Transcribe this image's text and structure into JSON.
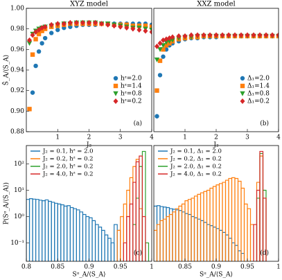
{
  "chart_data": [
    {
      "type": "scatter",
      "title": "XYZ model",
      "x_label": "J₂",
      "y_label": "S̄_A/⟨S_A⟩",
      "panel_label": "(a)",
      "legend": "lower right",
      "x": [
        0.1,
        0.2,
        0.3,
        0.4,
        0.5,
        0.6,
        0.8,
        1.0,
        1.2,
        1.4,
        1.6,
        1.8,
        2.0,
        2.2,
        2.4,
        2.6,
        2.8,
        3.0,
        3.2,
        3.4,
        3.6,
        3.8,
        4.0
      ],
      "xlim": [
        0,
        4
      ],
      "xticks": [
        1,
        2,
        3,
        4
      ],
      "ylim": [
        0.88,
        1.0
      ],
      "yticks": [
        0.88,
        {
          "value": 0.9,
          "label": "0.90"
        },
        0.92,
        0.94,
        0.96,
        0.98,
        {
          "value": 1.0,
          "label": "1.00"
        }
      ],
      "series": [
        {
          "name": "hᶻ=2.0",
          "color": "#1f77b4",
          "marker": "circle",
          "values": [
            null,
            0.918,
            0.944,
            0.958,
            0.966,
            0.971,
            0.976,
            0.979,
            0.981,
            0.982,
            0.983,
            0.984,
            0.984,
            0.984,
            0.985,
            0.985,
            0.985,
            0.985,
            0.985,
            0.985,
            0.985,
            0.985,
            0.984
          ]
        },
        {
          "name": "hᶻ=1.4",
          "color": "#ff7f0e",
          "marker": "square",
          "values": [
            0.902,
            0.955,
            0.97,
            0.975,
            0.978,
            0.98,
            0.982,
            0.983,
            0.984,
            0.985,
            0.985,
            0.985,
            0.985,
            0.985,
            0.985,
            0.985,
            0.984,
            0.984,
            0.984,
            0.983,
            0.983,
            0.983,
            0.982
          ]
        },
        {
          "name": "hᶻ=0.8",
          "color": "#2ca02c",
          "marker": "triangle",
          "values": [
            0.966,
            0.975,
            0.978,
            0.98,
            0.981,
            0.982,
            0.983,
            0.984,
            0.985,
            0.985,
            0.986,
            0.986,
            0.986,
            0.986,
            0.985,
            0.985,
            0.984,
            0.983,
            0.982,
            0.981,
            0.981,
            0.98,
            0.979
          ]
        },
        {
          "name": "hᶻ=0.2",
          "color": "#d62728",
          "marker": "diamond",
          "values": [
            0.969,
            0.974,
            0.977,
            0.979,
            0.981,
            0.982,
            0.984,
            0.985,
            0.985,
            0.986,
            0.986,
            0.986,
            0.986,
            0.986,
            0.985,
            0.984,
            0.983,
            0.982,
            0.981,
            0.98,
            0.979,
            0.978,
            0.977
          ]
        }
      ]
    },
    {
      "type": "scatter",
      "title": "XXZ model",
      "x_label": "J₂",
      "panel_label": "(b)",
      "legend": "lower right",
      "x": [
        0.1,
        0.2,
        0.3,
        0.4,
        0.5,
        0.6,
        0.8,
        1.0,
        1.2,
        1.4,
        1.6,
        1.8,
        2.0,
        2.2,
        2.4,
        2.6,
        2.8,
        3.0,
        3.2,
        3.4,
        3.6,
        3.8,
        4.0
      ],
      "xlim": [
        0,
        4
      ],
      "xticks": [
        1,
        2,
        3,
        4
      ],
      "ylim": [
        0.88,
        1.0
      ],
      "series": [
        {
          "name": "Δ₁=2.0",
          "color": "#1f77b4",
          "marker": "circle",
          "values": [
            0.895,
            0.935,
            0.953,
            0.96,
            0.964,
            0.966,
            0.968,
            0.97,
            0.971,
            0.971,
            0.972,
            0.972,
            0.972,
            0.973,
            0.973,
            0.973,
            0.973,
            0.973,
            0.973,
            0.973,
            0.973,
            0.973,
            0.973
          ]
        },
        {
          "name": "Δ₁=1.4",
          "color": "#ff7f0e",
          "marker": "square",
          "values": [
            0.92,
            0.949,
            0.96,
            0.964,
            0.966,
            0.968,
            0.97,
            0.971,
            0.972,
            0.972,
            0.973,
            0.973,
            0.973,
            0.973,
            0.973,
            0.973,
            0.973,
            0.973,
            0.973,
            0.973,
            0.973,
            0.973,
            0.973
          ]
        },
        {
          "name": "Δ₁=0.8",
          "color": "#2ca02c",
          "marker": "triangle",
          "values": [
            0.95,
            0.96,
            0.964,
            0.967,
            0.968,
            0.969,
            0.971,
            0.972,
            0.972,
            0.973,
            0.973,
            0.973,
            0.973,
            0.973,
            0.973,
            0.973,
            0.973,
            0.973,
            0.973,
            0.973,
            0.973,
            0.973,
            0.973
          ]
        },
        {
          "name": "Δ₁=0.2",
          "color": "#d62728",
          "marker": "diamond",
          "values": [
            0.963,
            0.966,
            0.969,
            0.97,
            0.971,
            0.972,
            0.973,
            0.973,
            0.974,
            0.974,
            0.974,
            0.974,
            0.974,
            0.974,
            0.974,
            0.974,
            0.974,
            0.974,
            0.974,
            0.974,
            0.974,
            0.974,
            0.974
          ]
        }
      ]
    },
    {
      "type": "histogram",
      "x_label": "Sᵅ_A/⟨S_A⟩",
      "y_label": "P(Sᵅ_A/⟨S_A⟩)",
      "panel_label": "(c)",
      "legend": "upper left",
      "log_y": true,
      "bins": [
        0.8,
        0.805,
        0.81,
        0.815,
        0.82,
        0.825,
        0.83,
        0.835,
        0.84,
        0.845,
        0.85,
        0.855,
        0.86,
        0.865,
        0.87,
        0.875,
        0.88,
        0.885,
        0.89,
        0.895,
        0.9,
        0.905,
        0.91,
        0.915,
        0.92,
        0.925,
        0.93,
        0.935,
        0.94,
        0.945,
        0.95,
        0.955,
        0.96,
        0.965,
        0.97,
        0.975,
        0.98,
        0.985,
        0.99,
        0.995,
        1.0
      ],
      "xlim": [
        0.8,
        1.0
      ],
      "xticks": [
        0.8,
        0.85,
        0.9,
        0.95,
        1
      ],
      "ylim": [
        0.02,
        500
      ],
      "yticks": [
        {
          "value": 0.1,
          "label": "10⁻¹"
        },
        {
          "value": 1,
          "label": "10⁰"
        },
        {
          "value": 10,
          "label": "10¹"
        },
        {
          "value": 100,
          "label": "10²"
        }
      ],
      "series": [
        {
          "name": "J₂ = 0.1, hᶻ = 2.0",
          "color": "#1f77b4",
          "values": [
            4.5,
            4.8,
            4.6,
            4.5,
            4.2,
            4.0,
            4.3,
            3.8,
            3.5,
            3.2,
            3.0,
            2.8,
            2.5,
            2.6,
            2.2,
            2.0,
            1.8,
            1.5,
            1.2,
            1.0,
            0.9,
            0.7,
            0.5,
            0.4,
            0.3,
            0.2,
            0.15,
            0.1,
            0.5,
            0.3,
            null,
            null,
            null,
            null,
            null,
            null,
            null,
            null,
            null,
            null
          ]
        },
        {
          "name": "J₂ = 0.2, hᶻ = 0.2",
          "color": "#ff7f0e",
          "values": [
            null,
            null,
            null,
            null,
            null,
            null,
            null,
            null,
            null,
            null,
            null,
            null,
            null,
            null,
            null,
            null,
            null,
            null,
            null,
            null,
            null,
            null,
            null,
            null,
            null,
            null,
            null,
            null,
            null,
            0.3,
            1.0,
            3,
            10,
            30,
            80,
            150,
            2,
            null,
            null,
            null
          ]
        },
        {
          "name": "J₂ = 2.0, hᶻ = 0.2",
          "color": "#2ca02c",
          "values": [
            null,
            null,
            null,
            null,
            null,
            null,
            null,
            null,
            null,
            null,
            null,
            null,
            null,
            null,
            null,
            null,
            null,
            null,
            null,
            null,
            null,
            null,
            null,
            null,
            null,
            null,
            null,
            null,
            null,
            null,
            null,
            null,
            null,
            null,
            0.5,
            5,
            80,
            300,
            0.1,
            null
          ]
        },
        {
          "name": "J₂ = 4.0, hᶻ = 0.2",
          "color": "#d62728",
          "values": [
            null,
            null,
            null,
            null,
            null,
            null,
            null,
            null,
            null,
            null,
            null,
            null,
            null,
            null,
            null,
            null,
            null,
            null,
            null,
            null,
            null,
            null,
            null,
            null,
            null,
            null,
            null,
            null,
            null,
            null,
            null,
            0.1,
            1,
            3,
            20,
            120,
            200,
            1,
            null,
            null
          ]
        }
      ]
    },
    {
      "type": "histogram",
      "x_label": "Sᵅ_A/⟨S_A⟩",
      "panel_label": "(d)",
      "legend": "upper left",
      "log_y": true,
      "bins": [
        0.8,
        0.805,
        0.81,
        0.815,
        0.82,
        0.825,
        0.83,
        0.835,
        0.84,
        0.845,
        0.85,
        0.855,
        0.86,
        0.865,
        0.87,
        0.875,
        0.88,
        0.885,
        0.89,
        0.895,
        0.9,
        0.905,
        0.91,
        0.915,
        0.92,
        0.925,
        0.93,
        0.935,
        0.94,
        0.945,
        0.95,
        0.955,
        0.96,
        0.965,
        0.97,
        0.975,
        0.98,
        0.985,
        0.99,
        0.995,
        1.0
      ],
      "xlim": [
        0.8,
        1.0
      ],
      "xticks": [
        0.85,
        0.9,
        0.95,
        1
      ],
      "ylim": [
        0.02,
        500
      ],
      "series": [
        {
          "name": "J₂ = 0.1, Δ₁ = 2.0",
          "color": "#1f77b4",
          "values": [
            2.5,
            2.6,
            2.4,
            2.3,
            2.2,
            2.0,
            1.9,
            1.8,
            1.7,
            1.5,
            1.3,
            1.2,
            1.0,
            0.9,
            0.8,
            0.7,
            0.6,
            0.5,
            0.45,
            0.4,
            0.35,
            0.3,
            0.25,
            0.2,
            0.15,
            0.1,
            0.08,
            0.05,
            0.04,
            null,
            null,
            null,
            null,
            null,
            null,
            null,
            null,
            null,
            null,
            null
          ]
        },
        {
          "name": "J₂ = 0.2, Δ₁ = 0.2",
          "color": "#ff7f0e",
          "values": [
            0.3,
            0.5,
            0.7,
            0.8,
            1,
            1.2,
            1.5,
            2,
            2.5,
            3,
            4,
            4.5,
            5,
            6,
            7,
            8,
            9,
            10,
            12,
            14,
            16,
            18,
            20,
            24,
            28,
            30,
            28,
            22,
            12,
            3,
            2,
            0.5,
            null,
            20,
            200,
            5,
            null,
            null,
            null,
            null
          ]
        },
        {
          "name": "J₂ = 2.0, Δ₁ = 0.2",
          "color": "#2ca02c",
          "values": [
            null,
            null,
            null,
            null,
            null,
            null,
            null,
            null,
            null,
            null,
            null,
            null,
            null,
            null,
            null,
            null,
            null,
            null,
            null,
            null,
            null,
            null,
            null,
            null,
            null,
            null,
            null,
            null,
            null,
            null,
            null,
            null,
            null,
            5,
            250,
            10,
            null,
            null,
            null,
            null
          ]
        },
        {
          "name": "J₂ = 4.0, Δ₁ = 0.2",
          "color": "#d62728",
          "values": [
            null,
            null,
            null,
            null,
            null,
            null,
            null,
            null,
            null,
            null,
            null,
            null,
            null,
            null,
            null,
            null,
            null,
            null,
            null,
            null,
            null,
            null,
            null,
            null,
            null,
            null,
            null,
            null,
            null,
            null,
            null,
            null,
            0.5,
            10,
            300,
            5,
            null,
            null,
            null,
            null
          ]
        }
      ]
    }
  ]
}
